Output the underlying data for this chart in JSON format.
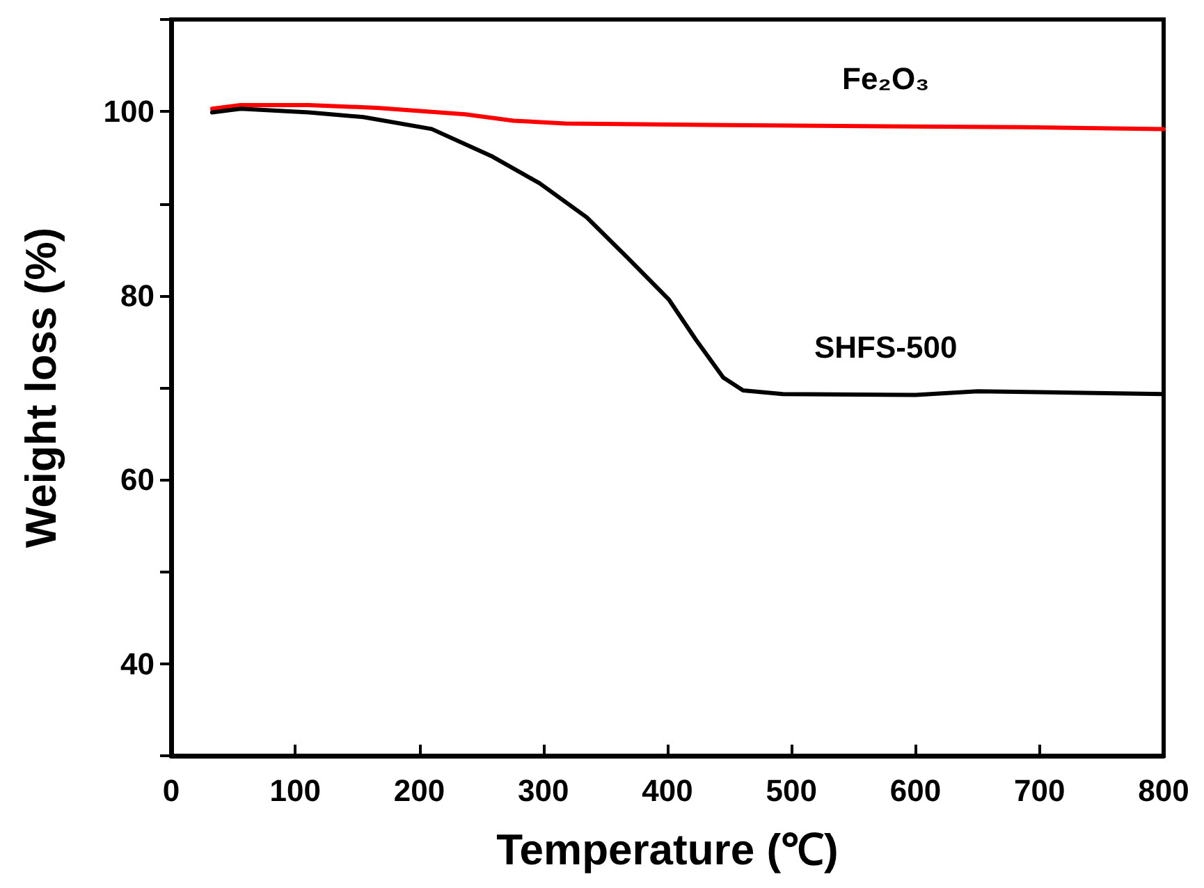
{
  "chart_data": {
    "type": "line",
    "xlabel": "Temperature (℃)",
    "ylabel": "Weight loss (%)",
    "xlim": [
      0,
      800
    ],
    "xticks": [
      0,
      100,
      200,
      300,
      400,
      500,
      600,
      700,
      800
    ],
    "ylim": [
      30,
      110
    ],
    "yticks": [
      {
        "value": 30,
        "label": null
      },
      40,
      {
        "value": 50,
        "label": null
      },
      60,
      {
        "value": 70,
        "label": null
      },
      80,
      {
        "value": 90,
        "label": null
      },
      100,
      {
        "value": 110,
        "label": null
      }
    ],
    "grid": false,
    "marker": "none",
    "line_style": "solid",
    "series": [
      {
        "name": "Fe₂O₃",
        "color": "#ff0000",
        "x": [
          33,
          56,
          111,
          166,
          237,
          276,
          318,
          467,
          686,
          800
        ],
        "values": [
          100.3,
          100.7,
          100.7,
          100.4,
          99.7,
          99.0,
          98.7,
          98.5,
          98.3,
          98.1
        ]
      },
      {
        "name": "SHFS-500",
        "color": "#000000",
        "x": [
          33,
          56,
          111,
          155,
          210,
          259,
          297,
          335,
          368,
          401,
          423,
          445,
          461,
          493,
          600,
          650,
          700,
          800
        ],
        "values": [
          99.9,
          100.3,
          99.9,
          99.4,
          98.1,
          95.1,
          92.2,
          88.5,
          84.1,
          79.6,
          75.2,
          71.1,
          69.7,
          69.3,
          69.2,
          69.6,
          69.5,
          69.3
        ]
      }
    ]
  }
}
